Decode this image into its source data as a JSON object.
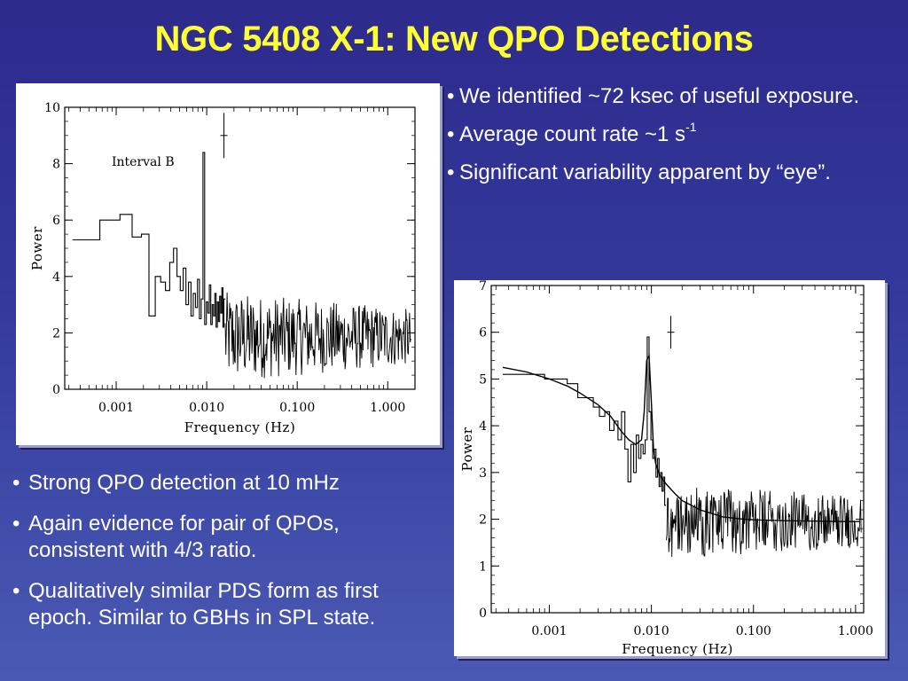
{
  "slide": {
    "title": "NGC 5408 X-1: New QPO Detections",
    "colors": {
      "title": "#ffff33",
      "text": "#ffffff",
      "background": "#2d2a8c"
    }
  },
  "bullets_top": [
    {
      "bullet": "•",
      "text": "We identified ~72 ksec of useful exposure."
    },
    {
      "bullet": "•",
      "text_pre": "Average count rate ~1 s",
      "sup": "-1"
    },
    {
      "bullet": "•",
      "text": "Significant variability apparent by “eye”."
    }
  ],
  "bullets_bottom": [
    {
      "bullet": "•",
      "text": "Strong QPO detection at 10 mHz"
    },
    {
      "bullet": "•",
      "text": "Again evidence for pair of QPOs, consistent with 4/3 ratio."
    },
    {
      "bullet": "•",
      "text": "Qualitatively similar PDS form as first epoch.  Similar to GBHs in SPL state."
    }
  ],
  "chart_data": [
    {
      "type": "line",
      "annotation": "Interval B",
      "xlabel": "Frequency (Hz)",
      "ylabel": "Power",
      "xscale": "log",
      "xlim": [
        0.00027,
        2.0
      ],
      "ylim": [
        0,
        10
      ],
      "x_tick_labels": [
        "0.001",
        "0.010",
        "0.100",
        "1.000"
      ],
      "x_tick_values": [
        0.001,
        0.01,
        0.1,
        1.0
      ],
      "y_tick_labels": [
        "0",
        "2",
        "4",
        "6",
        "8",
        "10"
      ],
      "y_tick_values": [
        0,
        2,
        4,
        6,
        8,
        10
      ],
      "series": [
        {
          "style": "histogram",
          "x": [
            0.00033,
            0.00066,
            0.0011,
            0.0015,
            0.0019,
            0.0023,
            0.0027,
            0.0031,
            0.0035,
            0.0039,
            0.0043,
            0.0047,
            0.0051,
            0.0055,
            0.0059,
            0.0063,
            0.0067,
            0.0071,
            0.0075,
            0.0079,
            0.0083,
            0.0087,
            0.0091,
            0.0095,
            0.0099,
            0.0103,
            0.0107,
            0.0111,
            0.0115,
            0.0119,
            0.0123,
            0.0127,
            0.0131,
            0.0135,
            0.0139,
            0.0143,
            0.0147,
            0.0151,
            0.0155
          ],
          "values": [
            5.3,
            6.0,
            6.2,
            5.4,
            5.5,
            2.6,
            4.0,
            3.8,
            3.5,
            4.5,
            5.0,
            4.0,
            3.5,
            4.3,
            3.0,
            3.8,
            2.6,
            3.4,
            2.9,
            3.9,
            2.5,
            3.2,
            8.4,
            2.3,
            3.1,
            2.7,
            3.7,
            2.3,
            3.0,
            2.6,
            3.4,
            2.2,
            3.1,
            2.4,
            3.3,
            2.7,
            3.6,
            2.2,
            3.2
          ]
        },
        {
          "style": "noise",
          "x_range": [
            0.016,
            1.8
          ],
          "mean": 1.85,
          "spread": [
            0.6,
            4.0
          ],
          "label": "high-frequency noise continuum"
        }
      ],
      "error_bar": {
        "x": 0.0155,
        "y": 9.0,
        "yerr": 0.8
      }
    },
    {
      "type": "line",
      "xlabel": "Frequency (Hz)",
      "ylabel": "Power",
      "xscale": "log",
      "xlim": [
        0.00027,
        1.2
      ],
      "ylim": [
        0,
        7
      ],
      "x_tick_labels": [
        "0.001",
        "0.010",
        "0.100",
        "1.000"
      ],
      "x_tick_values": [
        0.001,
        0.01,
        0.1,
        1.0
      ],
      "y_tick_labels": [
        "0",
        "1",
        "2",
        "3",
        "4",
        "5",
        "6",
        "7"
      ],
      "y_tick_values": [
        0,
        1,
        2,
        3,
        4,
        5,
        6,
        7
      ],
      "series": [
        {
          "style": "histogram",
          "x": [
            0.00035,
            0.0009,
            0.0015,
            0.0019,
            0.0023,
            0.0027,
            0.0031,
            0.0035,
            0.0039,
            0.0043,
            0.0047,
            0.0051,
            0.0055,
            0.0059,
            0.0063,
            0.0067,
            0.0071,
            0.0075,
            0.0079,
            0.0083,
            0.0087,
            0.0091,
            0.0095,
            0.0099,
            0.0103,
            0.0107,
            0.0111,
            0.0115,
            0.0119,
            0.0123,
            0.0127,
            0.0131,
            0.0135
          ],
          "values": [
            5.1,
            5.0,
            4.9,
            4.6,
            4.6,
            4.4,
            4.2,
            4.3,
            3.9,
            4.1,
            3.7,
            4.3,
            3.5,
            2.8,
            3.6,
            3.0,
            3.8,
            3.3,
            3.6,
            3.4,
            3.7,
            5.9,
            4.3,
            3.7,
            3.3,
            3.5,
            2.9,
            3.3,
            2.7,
            3.0,
            2.6,
            2.9,
            2.3
          ]
        },
        {
          "style": "noise",
          "x_range": [
            0.014,
            1.15
          ],
          "mean": 1.95,
          "spread": [
            1.2,
            3.1
          ],
          "label": "high-frequency noise continuum"
        },
        {
          "style": "model",
          "label": "broken power law + Lorentzian",
          "x": [
            0.00035,
            0.0006,
            0.001,
            0.0015,
            0.002,
            0.003,
            0.004,
            0.005,
            0.006,
            0.007,
            0.008,
            0.0085,
            0.009,
            0.0095,
            0.01,
            0.0105,
            0.011,
            0.012,
            0.014,
            0.017,
            0.02,
            0.03,
            0.05,
            0.08,
            0.12,
            0.2,
            0.4,
            0.7,
            1.1
          ],
          "values": [
            5.25,
            5.15,
            5.0,
            4.85,
            4.7,
            4.45,
            4.2,
            3.9,
            3.7,
            3.6,
            3.7,
            4.3,
            5.4,
            5.5,
            4.5,
            3.5,
            3.2,
            2.95,
            2.75,
            2.55,
            2.4,
            2.2,
            2.05,
            2.0,
            1.98,
            1.97,
            1.96,
            1.95,
            1.95
          ]
        }
      ],
      "error_bar": {
        "x": 0.0155,
        "y": 6.0,
        "yerr": 0.35
      }
    }
  ]
}
